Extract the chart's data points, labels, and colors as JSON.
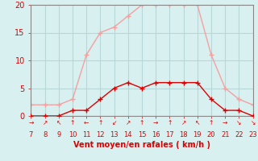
{
  "x": [
    7,
    8,
    9,
    10,
    11,
    12,
    13,
    14,
    15,
    16,
    17,
    18,
    19,
    20,
    21,
    22,
    23
  ],
  "y_mean": [
    0,
    0,
    0,
    1,
    1,
    3,
    5,
    6,
    5,
    6,
    6,
    6,
    6,
    3,
    1,
    1,
    0
  ],
  "y_gust": [
    2,
    2,
    2,
    3,
    11,
    15,
    16,
    18,
    20,
    20,
    20,
    20,
    20,
    11,
    5,
    3,
    2
  ],
  "line_color_mean": "#dd0000",
  "line_color_gust": "#f5a0a0",
  "marker_color_mean": "#dd0000",
  "marker_color_gust": "#f5a0a0",
  "bg_color": "#d8f0f0",
  "grid_color": "#b8d8d8",
  "xlabel": "Vent moyen/en rafales ( km/h )",
  "xlim": [
    7,
    23
  ],
  "ylim": [
    0,
    20
  ],
  "yticks": [
    0,
    5,
    10,
    15,
    20
  ],
  "xticks": [
    7,
    8,
    9,
    10,
    11,
    12,
    13,
    14,
    15,
    16,
    17,
    18,
    19,
    20,
    21,
    22,
    23
  ],
  "xticknums": [
    "7",
    "8",
    "9",
    "10",
    "11",
    "12",
    "13",
    "14",
    "15",
    "16",
    "17",
    "18",
    "19",
    "20",
    "21",
    "22",
    "23"
  ],
  "arrow_labels": [
    "→",
    "↗",
    "↖",
    "↑",
    "←",
    "↑",
    "↙",
    "↗",
    "↑",
    "→",
    "↑",
    "↗",
    "↖",
    "↑",
    "→",
    "↘",
    "↘"
  ],
  "axis_color": "#dd0000",
  "tick_label_color": "#dd0000",
  "xlabel_color": "#dd0000",
  "spine_color": "#888888"
}
